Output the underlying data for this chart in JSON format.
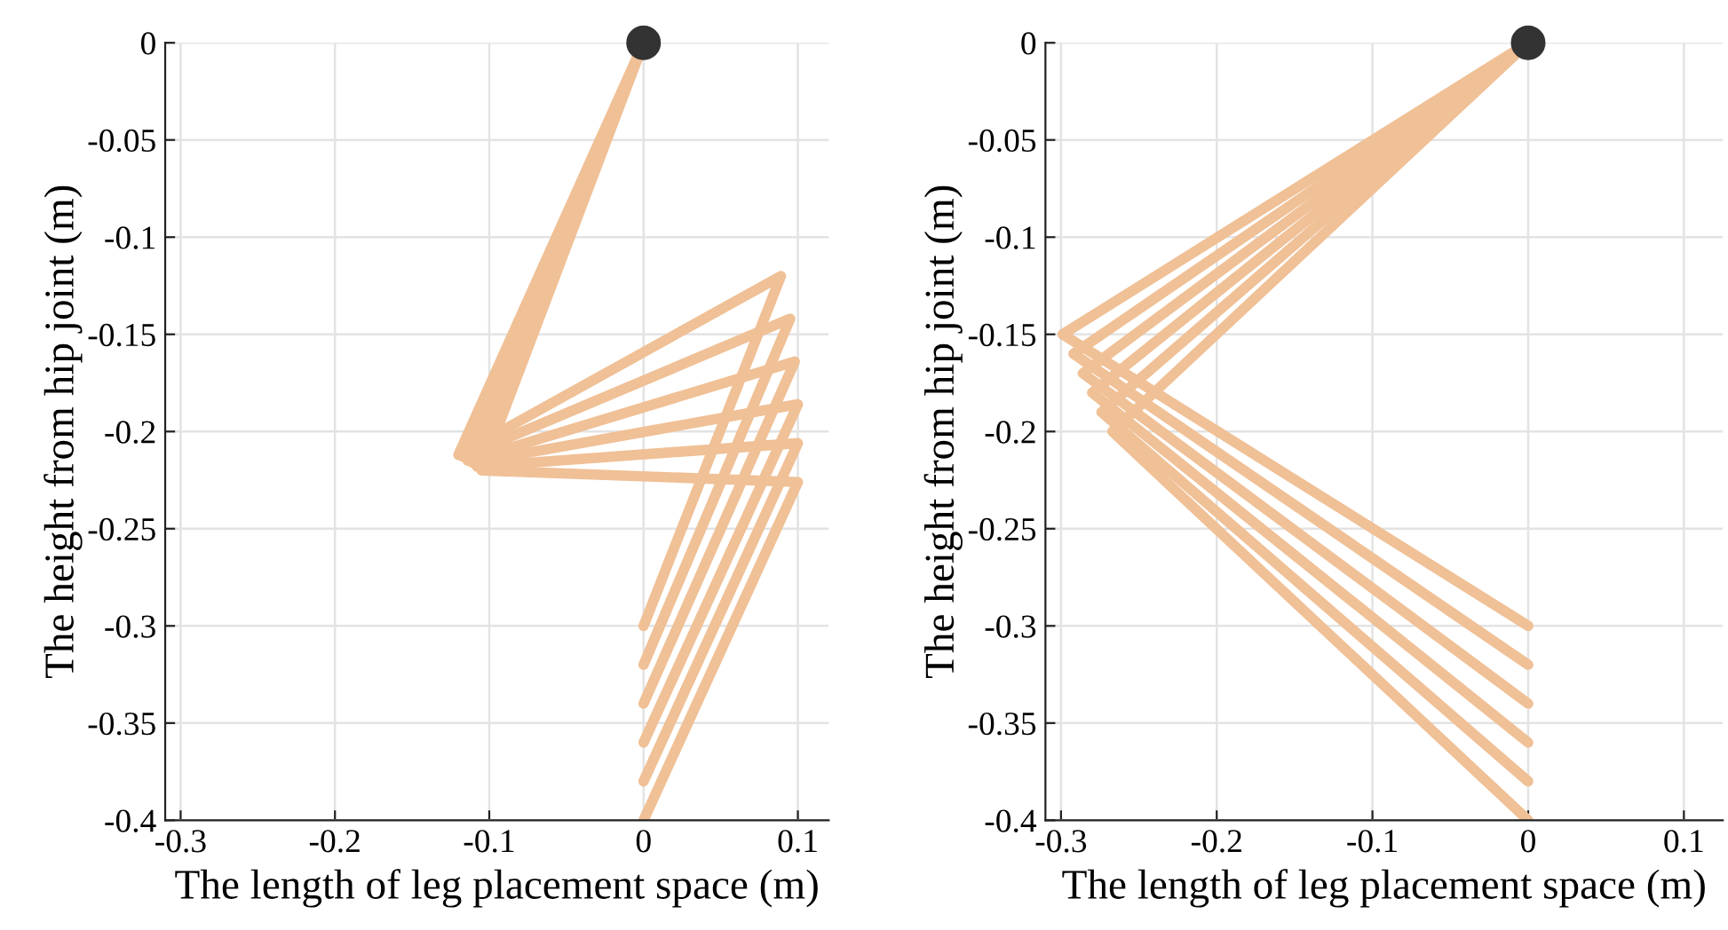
{
  "chart_data": [
    {
      "type": "line",
      "xlabel": "The length of leg placement space (m)",
      "ylabel": "The height from hip joint (m)",
      "xlim": [
        -0.31,
        0.12
      ],
      "ylim": [
        -0.4,
        0
      ],
      "xticks": [
        -0.3,
        -0.2,
        -0.1,
        0,
        0.1
      ],
      "yticks": [
        -0.4,
        -0.35,
        -0.3,
        -0.25,
        -0.2,
        -0.15,
        -0.1,
        -0.05,
        0
      ],
      "grid": true,
      "line_style": "solid",
      "series": [
        {
          "color": "#f0c096",
          "x": [
            0,
            -0.12,
            0.089,
            0
          ],
          "values": [
            0,
            -0.212,
            -0.12,
            -0.3
          ]
        },
        {
          "color": "#f0c096",
          "x": [
            0,
            -0.117,
            0.095,
            0
          ],
          "values": [
            0,
            -0.213,
            -0.142,
            -0.32
          ]
        },
        {
          "color": "#f0c096",
          "x": [
            0,
            -0.114,
            0.098,
            0
          ],
          "values": [
            0,
            -0.215,
            -0.164,
            -0.34
          ]
        },
        {
          "color": "#f0c096",
          "x": [
            0,
            -0.111,
            0.1,
            0
          ],
          "values": [
            0,
            -0.216,
            -0.186,
            -0.36
          ]
        },
        {
          "color": "#f0c096",
          "x": [
            0,
            -0.108,
            0.1,
            0
          ],
          "values": [
            0,
            -0.218,
            -0.206,
            -0.38
          ]
        },
        {
          "color": "#f0c096",
          "x": [
            0,
            -0.105,
            0.1,
            0
          ],
          "values": [
            0,
            -0.22,
            -0.226,
            -0.4
          ]
        },
        {
          "type": "scatter",
          "color": "#333333",
          "x": [
            0
          ],
          "values": [
            0
          ]
        }
      ]
    },
    {
      "type": "line",
      "xlabel": "The length of leg placement space (m)",
      "ylabel": "The height from hip joint (m)",
      "xlim": [
        -0.31,
        0.125
      ],
      "ylim": [
        -0.4,
        0
      ],
      "xticks": [
        -0.3,
        -0.2,
        -0.1,
        0,
        0.1
      ],
      "yticks": [
        -0.4,
        -0.35,
        -0.3,
        -0.25,
        -0.2,
        -0.15,
        -0.1,
        -0.05,
        0
      ],
      "grid": true,
      "line_style": "solid",
      "series": [
        {
          "color": "#f0c096",
          "x": [
            0,
            -0.299,
            0
          ],
          "values": [
            0,
            -0.15,
            -0.3
          ]
        },
        {
          "color": "#f0c096",
          "x": [
            0,
            -0.292,
            0
          ],
          "values": [
            0,
            -0.16,
            -0.32
          ]
        },
        {
          "color": "#f0c096",
          "x": [
            0,
            -0.286,
            0
          ],
          "values": [
            0,
            -0.17,
            -0.34
          ]
        },
        {
          "color": "#f0c096",
          "x": [
            0,
            -0.28,
            0
          ],
          "values": [
            0,
            -0.18,
            -0.36
          ]
        },
        {
          "color": "#f0c096",
          "x": [
            0,
            -0.274,
            0
          ],
          "values": [
            0,
            -0.19,
            -0.38
          ]
        },
        {
          "color": "#f0c096",
          "x": [
            0,
            -0.267,
            0
          ],
          "values": [
            0,
            -0.2,
            -0.4
          ]
        },
        {
          "type": "scatter",
          "color": "#333333",
          "x": [
            0
          ],
          "values": [
            0
          ]
        }
      ]
    }
  ]
}
